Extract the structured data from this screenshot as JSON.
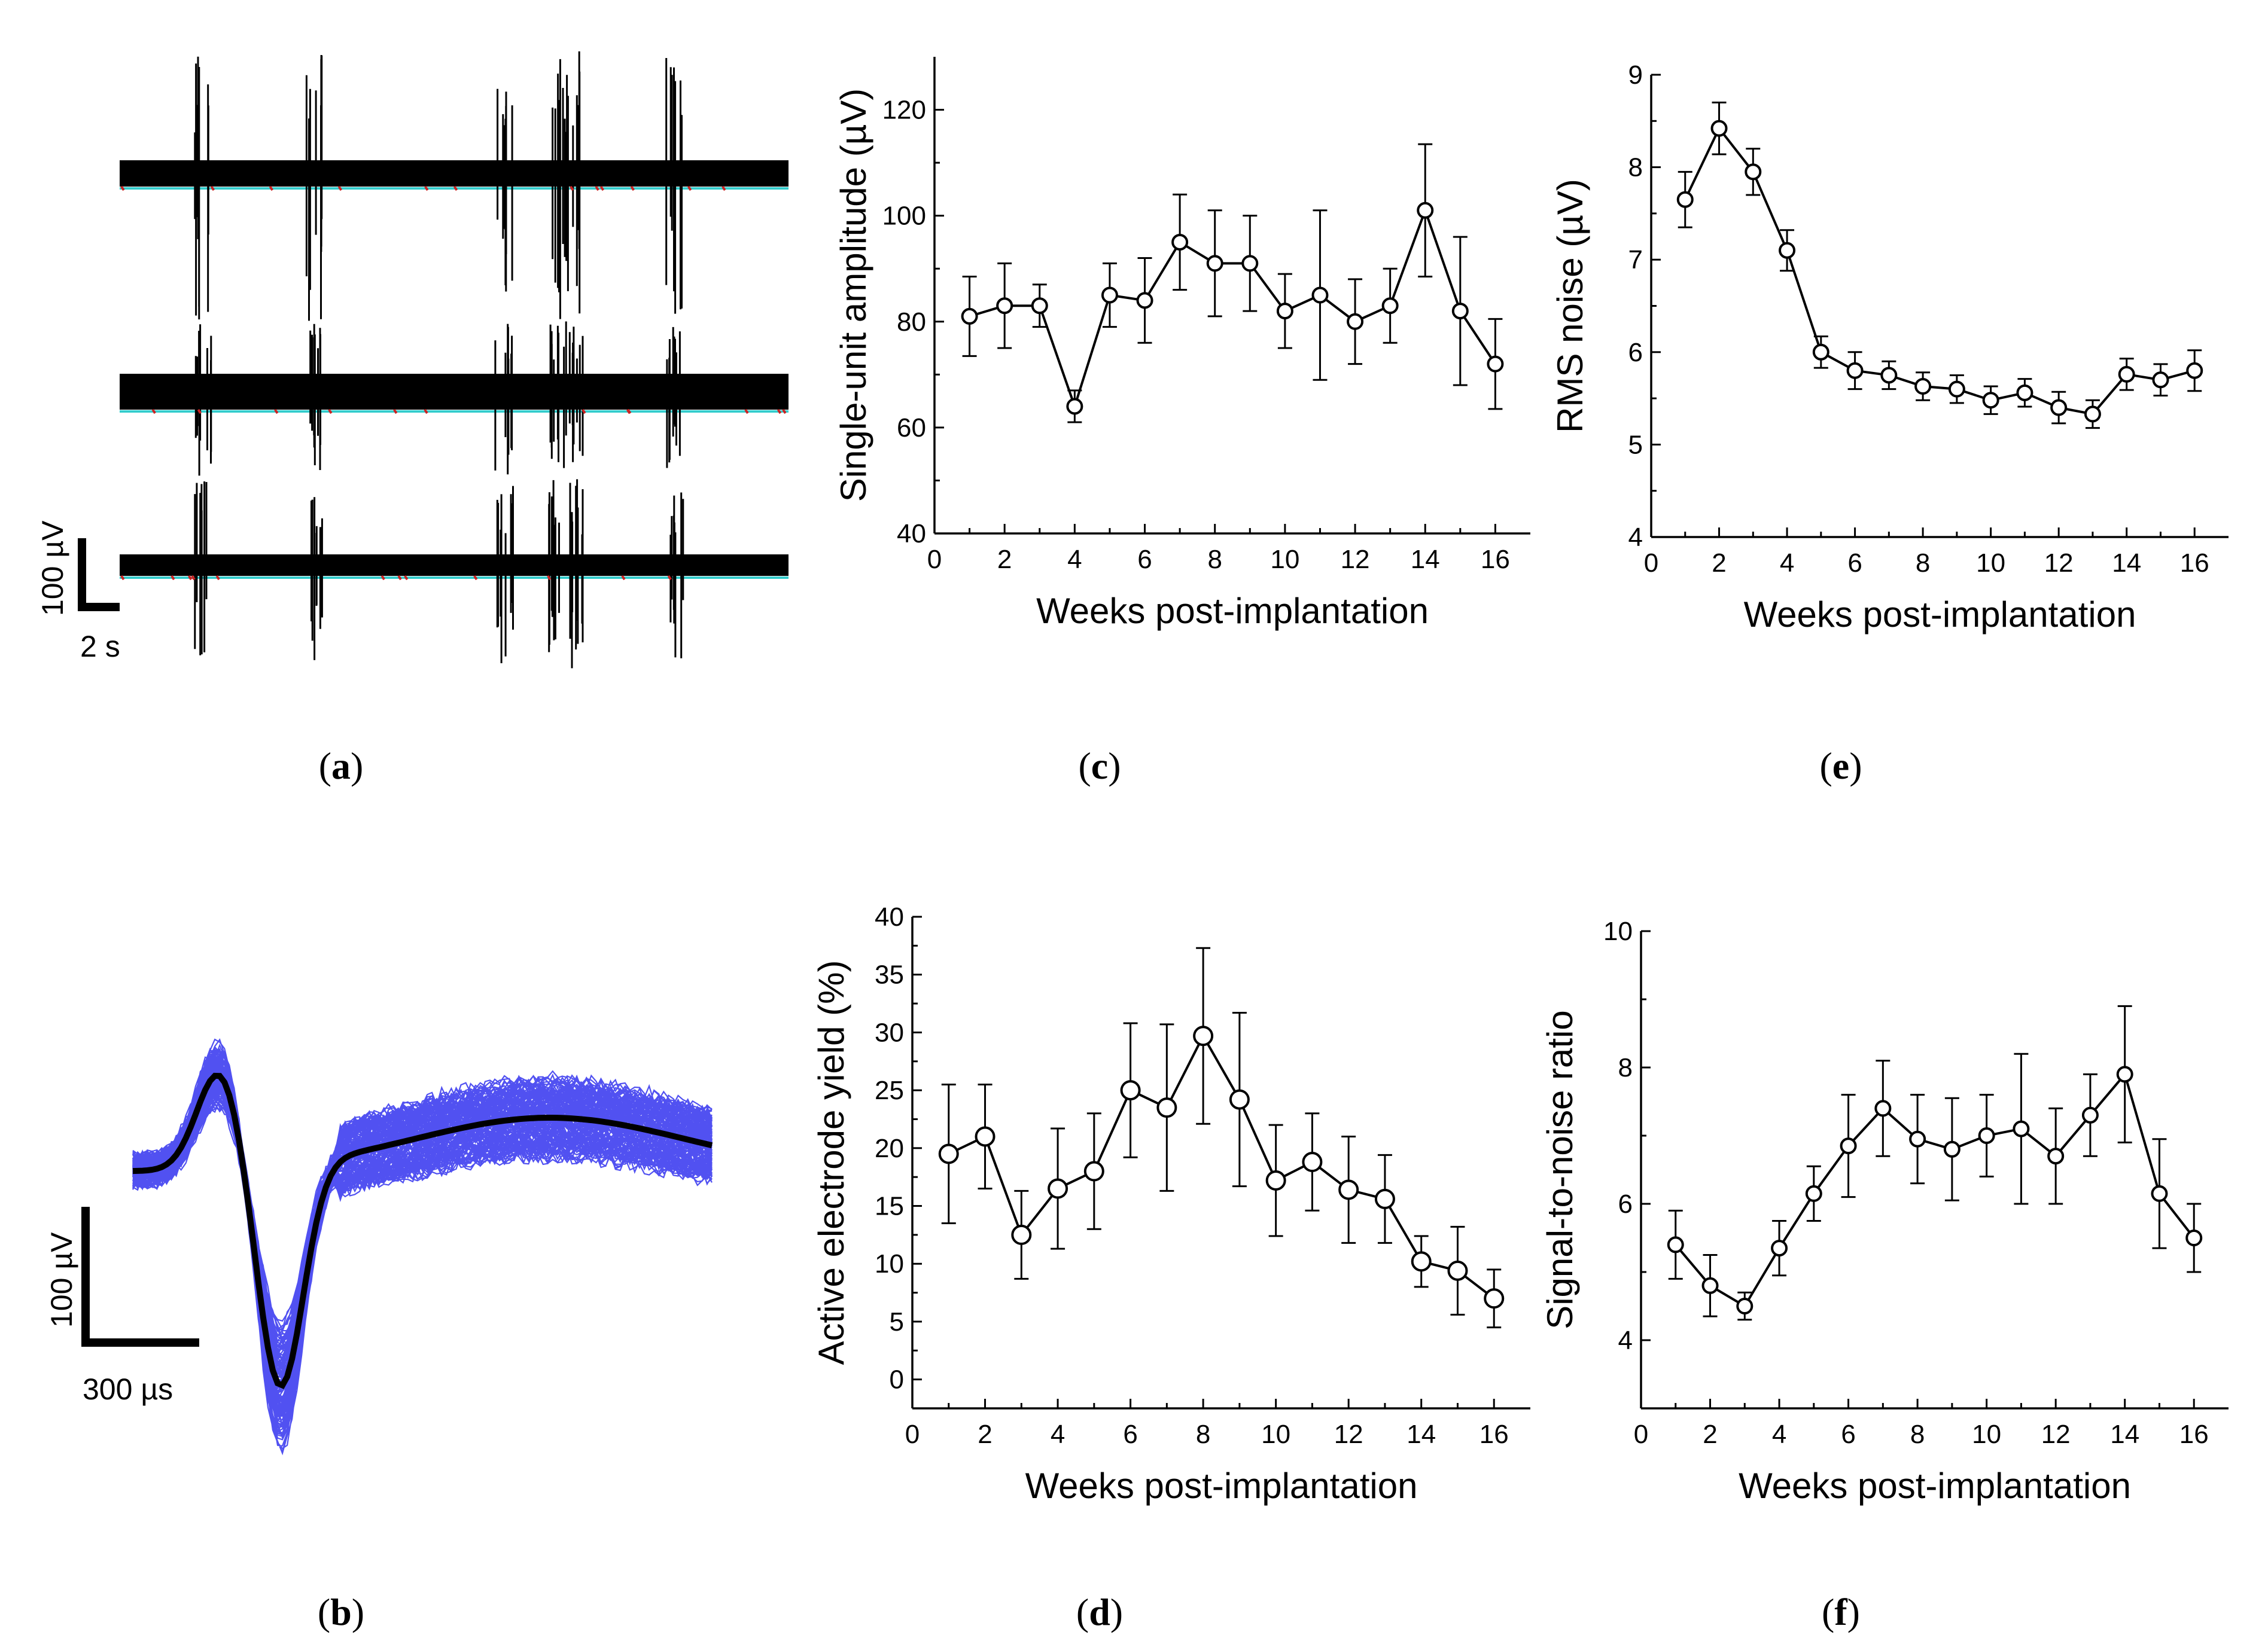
{
  "panels": {
    "a": {
      "label_open": "(",
      "letter": "a",
      "label_close": ")"
    },
    "b": {
      "label_open": "(",
      "letter": "b",
      "label_close": ")"
    },
    "c": {
      "label_open": "(",
      "letter": "c",
      "label_close": ")"
    },
    "d": {
      "label_open": "(",
      "letter": "d",
      "label_close": ")"
    },
    "e": {
      "label_open": "(",
      "letter": "e",
      "label_close": ")"
    },
    "f": {
      "label_open": "(",
      "letter": "f",
      "label_close": ")"
    }
  },
  "scale_bars": {
    "a": {
      "amplitude": "100 µV",
      "time": "2 s"
    },
    "b": {
      "amplitude": "100 µV",
      "time": "300 µs"
    }
  },
  "colors": {
    "trace": "#000000",
    "trace_threshold_cyan": "#33cccc",
    "trace_threshold_red": "#cc2222",
    "waveform_blue": "#3333ee",
    "mean_waveform": "#000000"
  },
  "chart_data": [
    {
      "id": "c",
      "type": "line",
      "title": "",
      "xlabel": "Weeks post-implantation",
      "ylabel": "Single-unit amplitude (µV)",
      "xlim": [
        0,
        17
      ],
      "ylim": [
        40,
        130
      ],
      "xticks": [
        0,
        2,
        4,
        6,
        8,
        10,
        12,
        14,
        16
      ],
      "yticks": [
        40,
        60,
        80,
        100,
        120
      ],
      "x": [
        1,
        2,
        3,
        4,
        5,
        6,
        7,
        8,
        9,
        10,
        11,
        12,
        13,
        14,
        15,
        16
      ],
      "series": [
        {
          "name": "Single-unit amplitude",
          "values": [
            81,
            83,
            83,
            64,
            85,
            84,
            95,
            91,
            91,
            82,
            85,
            80,
            83,
            101,
            82,
            72
          ],
          "error": [
            7.5,
            8,
            4,
            3,
            6,
            8,
            9,
            10,
            9,
            7,
            16,
            8,
            7,
            12.5,
            14,
            8.5
          ]
        }
      ]
    },
    {
      "id": "d",
      "type": "line",
      "title": "",
      "xlabel": "Weeks post-implantation",
      "ylabel": "Active electrode yield (%)",
      "xlim": [
        0,
        17
      ],
      "ylim": [
        -2.5,
        40
      ],
      "xticks": [
        0,
        2,
        4,
        6,
        8,
        10,
        12,
        14,
        16
      ],
      "yticks": [
        0,
        5,
        10,
        15,
        20,
        25,
        30,
        35,
        40
      ],
      "x": [
        1,
        2,
        3,
        4,
        5,
        6,
        7,
        8,
        9,
        10,
        11,
        12,
        13,
        14,
        15,
        16
      ],
      "series": [
        {
          "name": "Active electrode yield",
          "values": [
            19.5,
            21,
            12.5,
            16.5,
            18,
            25,
            23.5,
            29.7,
            24.2,
            17.2,
            18.8,
            16.4,
            15.6,
            10.2,
            9.4,
            7
          ],
          "error": [
            6,
            4.5,
            3.8,
            5.2,
            5,
            5.8,
            7.2,
            7.6,
            7.5,
            4.8,
            4.2,
            4.6,
            3.8,
            2.2,
            3.8,
            2.5
          ]
        }
      ]
    },
    {
      "id": "e",
      "type": "line",
      "title": "",
      "xlabel": "Weeks post-implantation",
      "ylabel": "RMS noise (µV)",
      "xlim": [
        0,
        17
      ],
      "ylim": [
        4,
        9
      ],
      "xticks": [
        0,
        2,
        4,
        6,
        8,
        10,
        12,
        14,
        16
      ],
      "yticks": [
        4,
        5,
        6,
        7,
        8,
        9
      ],
      "x": [
        1,
        2,
        3,
        4,
        5,
        6,
        7,
        8,
        9,
        10,
        11,
        12,
        13,
        14,
        15,
        16
      ],
      "series": [
        {
          "name": "RMS noise",
          "values": [
            7.65,
            8.42,
            7.95,
            7.1,
            6.0,
            5.8,
            5.75,
            5.63,
            5.6,
            5.48,
            5.56,
            5.4,
            5.33,
            5.76,
            5.7,
            5.8
          ],
          "error": [
            0.3,
            0.28,
            0.25,
            0.22,
            0.17,
            0.2,
            0.15,
            0.15,
            0.15,
            0.15,
            0.15,
            0.17,
            0.15,
            0.17,
            0.17,
            0.22
          ]
        }
      ]
    },
    {
      "id": "f",
      "type": "line",
      "title": "",
      "xlabel": "Weeks post-implantation",
      "ylabel": "Signal-to-noise ratio",
      "xlim": [
        0,
        17
      ],
      "ylim": [
        3,
        10
      ],
      "xticks": [
        0,
        2,
        4,
        6,
        8,
        10,
        12,
        14,
        16
      ],
      "yticks": [
        4,
        6,
        8,
        10
      ],
      "x": [
        1,
        2,
        3,
        4,
        5,
        6,
        7,
        8,
        9,
        10,
        11,
        12,
        13,
        14,
        15,
        16
      ],
      "series": [
        {
          "name": "Signal-to-noise ratio",
          "values": [
            5.4,
            4.8,
            4.5,
            5.35,
            6.15,
            6.85,
            7.4,
            6.95,
            6.8,
            7.0,
            7.1,
            6.7,
            7.3,
            7.9,
            6.15,
            5.5
          ],
          "error": [
            0.5,
            0.45,
            0.2,
            0.4,
            0.4,
            0.75,
            0.7,
            0.65,
            0.75,
            0.6,
            1.1,
            0.7,
            0.6,
            1.0,
            0.8,
            0.5
          ]
        }
      ]
    }
  ]
}
